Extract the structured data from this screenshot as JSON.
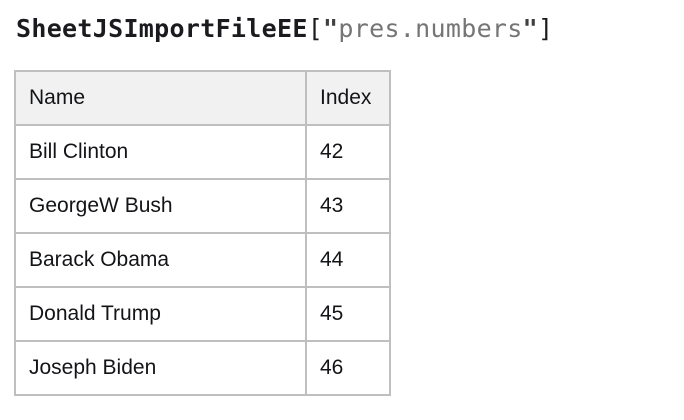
{
  "heading": {
    "function_name": "SheetJSImportFileEE",
    "bracket_open": "[",
    "quote_open": "\"",
    "file_name": "pres.numbers",
    "quote_close": "\"",
    "bracket_close": "]"
  },
  "table": {
    "headers": {
      "name": "Name",
      "index": "Index"
    },
    "rows": [
      {
        "name": "Bill Clinton",
        "index": "42"
      },
      {
        "name": "GeorgeW Bush",
        "index": "43"
      },
      {
        "name": "Barack Obama",
        "index": "44"
      },
      {
        "name": "Donald Trump",
        "index": "45"
      },
      {
        "name": "Joseph Biden",
        "index": "46"
      }
    ]
  },
  "colors": {
    "heading_text": "#1b1b1f",
    "heading_quote": "#404040",
    "heading_string": "#757575",
    "table_border": "#bfbfbf",
    "header_bg": "#f1f1f1",
    "cell_bg": "#ffffff",
    "cell_text": "#131417"
  }
}
